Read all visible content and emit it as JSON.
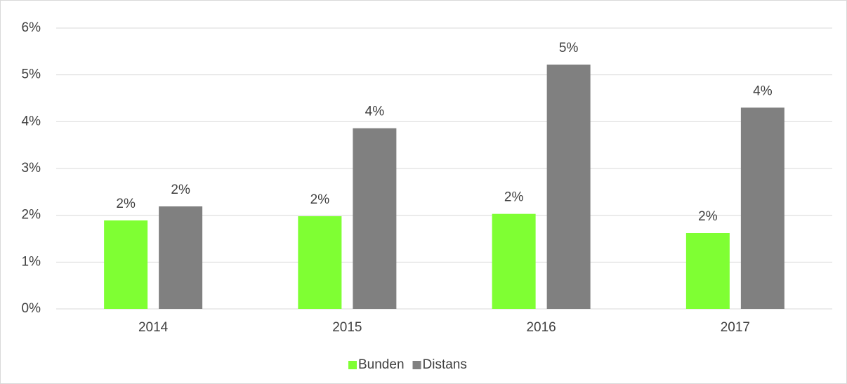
{
  "chart_data": {
    "type": "bar",
    "categories": [
      "2014",
      "2015",
      "2016",
      "2017"
    ],
    "series": [
      {
        "name": "Bunden",
        "color": "#7fff33",
        "values": [
          1.89,
          1.98,
          2.03,
          1.62
        ],
        "value_labels": [
          "2%",
          "2%",
          "2%",
          "2%"
        ]
      },
      {
        "name": "Distans",
        "color": "#808080",
        "values": [
          2.19,
          3.86,
          5.22,
          4.3
        ],
        "value_labels": [
          "2%",
          "4%",
          "5%",
          "4%"
        ]
      }
    ],
    "ylim": [
      0,
      6
    ],
    "yticks": [
      {
        "value": 0,
        "label": "0%"
      },
      {
        "value": 1,
        "label": "1%"
      },
      {
        "value": 2,
        "label": "2%"
      },
      {
        "value": 3,
        "label": "3%"
      },
      {
        "value": 4,
        "label": "4%"
      },
      {
        "value": 5,
        "label": "5%"
      },
      {
        "value": 6,
        "label": "6%"
      }
    ],
    "grid": true,
    "legend": "bottom"
  }
}
